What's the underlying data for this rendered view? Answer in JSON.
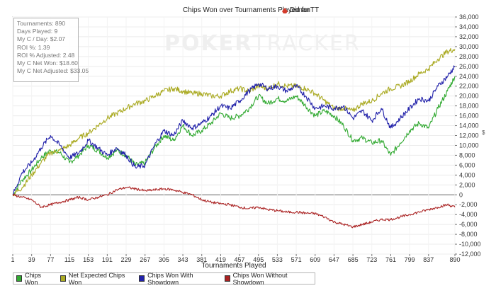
{
  "chart_data": {
    "type": "line",
    "title": "Chips Won over Tournaments Played for",
    "player": "DimanTT",
    "xlabel": "Tournaments Played",
    "ylabel": "",
    "xlim": [
      1,
      890
    ],
    "ylim": [
      -12000,
      36000
    ],
    "x_ticks": [
      "1",
      "39",
      "77",
      "115",
      "153",
      "191",
      "229",
      "267",
      "305",
      "343",
      "381",
      "419",
      "457",
      "495",
      "533",
      "571",
      "609",
      "647",
      "685",
      "723",
      "761",
      "799",
      "837",
      "890"
    ],
    "y_ticks": [
      "36,000",
      "34,000",
      "32,000",
      "30,000",
      "28,000",
      "26,000",
      "24,000",
      "22,000",
      "20,000",
      "18,000",
      "16,000",
      "14,000",
      "12,000",
      "10,000",
      "8,000",
      "6,000",
      "4,000",
      "2,000",
      "0",
      "-2,000",
      "-4,000",
      "-6,000",
      "-8,000",
      "-10,000",
      "-12,000"
    ],
    "grid": true,
    "legend_position": "bottom-left",
    "series": [
      {
        "name": "Chips Won",
        "color": "#33aa33",
        "x": [
          1,
          20,
          39,
          58,
          77,
          96,
          115,
          134,
          153,
          172,
          191,
          210,
          229,
          248,
          267,
          286,
          305,
          324,
          343,
          362,
          381,
          400,
          419,
          438,
          457,
          476,
          495,
          514,
          533,
          552,
          571,
          590,
          609,
          628,
          647,
          666,
          685,
          704,
          723,
          742,
          761,
          780,
          799,
          818,
          837,
          856,
          875,
          890
        ],
        "y": [
          0,
          3000,
          5000,
          7500,
          9000,
          8500,
          6500,
          8000,
          10000,
          9000,
          7500,
          9000,
          8000,
          6000,
          6500,
          9500,
          12000,
          11000,
          14000,
          12000,
          13000,
          14500,
          16500,
          15500,
          16000,
          17500,
          20000,
          18500,
          19500,
          19000,
          20000,
          18000,
          16000,
          17000,
          16000,
          14000,
          11000,
          11500,
          10500,
          11000,
          8000,
          10500,
          13000,
          14500,
          13500,
          17500,
          21000,
          24000
        ]
      },
      {
        "name": "Net Expected Chips Won",
        "color": "#aaaa22",
        "x": [
          1,
          20,
          39,
          58,
          77,
          96,
          115,
          134,
          153,
          172,
          191,
          210,
          229,
          248,
          267,
          286,
          305,
          324,
          343,
          362,
          381,
          400,
          419,
          438,
          457,
          476,
          495,
          514,
          533,
          552,
          571,
          590,
          609,
          628,
          647,
          666,
          685,
          704,
          723,
          742,
          761,
          780,
          799,
          818,
          837,
          856,
          875,
          890
        ],
        "y": [
          0,
          1500,
          4000,
          6500,
          8500,
          9000,
          10000,
          11500,
          12500,
          14000,
          15500,
          16500,
          17500,
          18500,
          19000,
          20000,
          21000,
          21500,
          21000,
          20500,
          20500,
          20000,
          20000,
          21000,
          21500,
          21000,
          22000,
          21500,
          22500,
          22000,
          22000,
          21500,
          20500,
          19000,
          17500,
          17500,
          17000,
          18500,
          19000,
          20500,
          21500,
          22000,
          23000,
          24500,
          25500,
          27500,
          29000,
          29500
        ]
      },
      {
        "name": "Chips Won With Showdown",
        "color": "#2222aa",
        "x": [
          1,
          20,
          39,
          58,
          77,
          96,
          115,
          134,
          153,
          172,
          191,
          210,
          229,
          248,
          267,
          286,
          305,
          324,
          343,
          362,
          381,
          400,
          419,
          438,
          457,
          476,
          495,
          514,
          533,
          552,
          571,
          590,
          609,
          628,
          647,
          666,
          685,
          704,
          723,
          742,
          761,
          780,
          799,
          818,
          837,
          856,
          875,
          890
        ],
        "y": [
          0,
          4500,
          6500,
          9500,
          12000,
          10000,
          7500,
          8500,
          11000,
          9500,
          8000,
          9500,
          8000,
          5500,
          6000,
          10000,
          13000,
          12000,
          15000,
          13500,
          14500,
          16000,
          18000,
          17500,
          19000,
          21000,
          22500,
          21500,
          22000,
          21000,
          22000,
          20000,
          17500,
          18000,
          17500,
          18000,
          15500,
          17000,
          15000,
          17500,
          13500,
          15500,
          17500,
          19500,
          19000,
          22000,
          24000,
          26000
        ]
      },
      {
        "name": "Chips Won Without Showdown",
        "color": "#aa2222",
        "x": [
          1,
          20,
          39,
          58,
          77,
          96,
          115,
          134,
          153,
          172,
          191,
          210,
          229,
          248,
          267,
          286,
          305,
          324,
          343,
          362,
          381,
          400,
          419,
          438,
          457,
          476,
          495,
          514,
          533,
          552,
          571,
          590,
          609,
          628,
          647,
          666,
          685,
          704,
          723,
          742,
          761,
          780,
          799,
          818,
          837,
          856,
          875,
          890
        ],
        "y": [
          0,
          -500,
          -1000,
          -2500,
          -2000,
          -1500,
          -1000,
          -500,
          -1000,
          -500,
          0,
          1000,
          1500,
          1200,
          800,
          1000,
          1200,
          1000,
          500,
          0,
          -1000,
          -1500,
          -1800,
          -2000,
          -2500,
          -2800,
          -2500,
          -3000,
          -3200,
          -3500,
          -3500,
          -3700,
          -3800,
          -4500,
          -5500,
          -6000,
          -6500,
          -6000,
          -5500,
          -5000,
          -5000,
          -4500,
          -4000,
          -3500,
          -3000,
          -2500,
          -2000,
          -2500
        ]
      }
    ]
  },
  "stats": {
    "tournaments": "Tournaments: 890",
    "days_played": "Days Played: 9",
    "my_c_day": "My C / Day: $2.07",
    "roi": "ROI %: 1.39",
    "roi_adjusted": "ROI % Adjusted: 2.48",
    "my_c_net_won": "My C Net Won: $18.60",
    "my_c_net_adjusted": "My C Net Adjusted: $33.05"
  },
  "watermark": {
    "bold": "POKER",
    "thin": "TRACKER"
  }
}
